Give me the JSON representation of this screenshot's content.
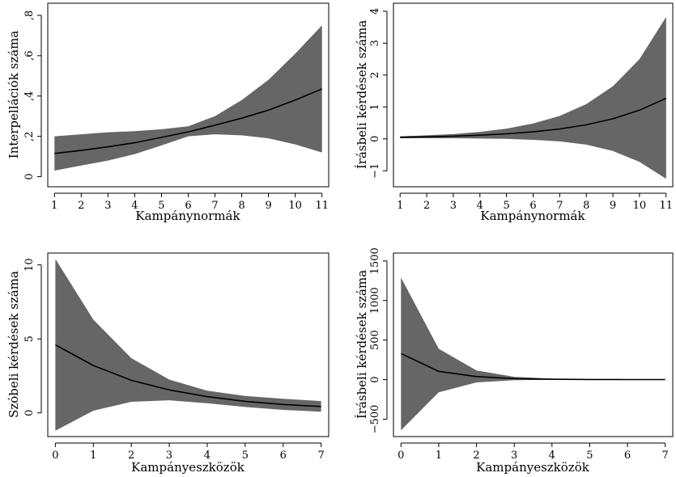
{
  "chart_data": [
    {
      "type": "area",
      "xlabel": "Kampánynormák",
      "ylabel": "Interpellációk száma",
      "x": [
        1,
        2,
        3,
        4,
        5,
        6,
        7,
        8,
        9,
        10,
        11
      ],
      "xticks": [
        "1",
        "2",
        "3",
        "4",
        "5",
        "6",
        "7",
        "8",
        "9",
        "10",
        "11"
      ],
      "xlim": [
        0.75,
        11.25
      ],
      "yticks": [
        0,
        0.2,
        0.4,
        0.6,
        0.8
      ],
      "ytick_labels": [
        "0",
        ",2",
        ",4",
        ",6",
        ",8"
      ],
      "ylim": [
        -0.05,
        0.86
      ],
      "series": [
        {
          "role": "upper",
          "values": [
            0.2,
            0.21,
            0.22,
            0.226,
            0.235,
            0.25,
            0.3,
            0.38,
            0.48,
            0.61,
            0.75
          ]
        },
        {
          "role": "lower",
          "values": [
            0.03,
            0.055,
            0.08,
            0.112,
            0.155,
            0.2,
            0.21,
            0.205,
            0.19,
            0.16,
            0.12
          ]
        },
        {
          "role": "estimate",
          "values": [
            0.115,
            0.13,
            0.148,
            0.168,
            0.195,
            0.222,
            0.255,
            0.29,
            0.33,
            0.38,
            0.435
          ]
        }
      ],
      "band_color": "#666666",
      "line_color": "#000000",
      "grid": false
    },
    {
      "type": "area",
      "xlabel": "Kampánynormák",
      "ylabel": "Írásbeli kérdések száma",
      "x": [
        1,
        2,
        3,
        4,
        5,
        6,
        7,
        8,
        9,
        10,
        11
      ],
      "xticks": [
        "1",
        "2",
        "3",
        "4",
        "5",
        "6",
        "7",
        "8",
        "9",
        "10",
        "11"
      ],
      "xlim": [
        0.75,
        11.25
      ],
      "yticks": [
        -1,
        0,
        1,
        2,
        3,
        4
      ],
      "ytick_labels": [
        "−1",
        "0",
        "1",
        "2",
        "3",
        "4"
      ],
      "ylim": [
        -1.5,
        4.25
      ],
      "series": [
        {
          "role": "upper",
          "values": [
            0.08,
            0.11,
            0.15,
            0.22,
            0.32,
            0.48,
            0.72,
            1.09,
            1.65,
            2.5,
            3.82
          ]
        },
        {
          "role": "lower",
          "values": [
            0.02,
            0.02,
            0.02,
            0.01,
            0.0,
            -0.03,
            -0.08,
            -0.18,
            -0.38,
            -0.72,
            -1.25
          ]
        },
        {
          "role": "estimate",
          "values": [
            0.05,
            0.065,
            0.085,
            0.115,
            0.16,
            0.22,
            0.31,
            0.44,
            0.63,
            0.9,
            1.27
          ]
        }
      ],
      "band_color": "#666666",
      "line_color": "#000000",
      "grid": false
    },
    {
      "type": "area",
      "xlabel": "Kampányeszközök",
      "ylabel": "Szóbeli kérdések száma",
      "x": [
        0,
        1,
        2,
        3,
        4,
        5,
        6,
        7
      ],
      "xticks": [
        "0",
        "1",
        "2",
        "3",
        "4",
        "5",
        "6",
        "7"
      ],
      "xlim": [
        -0.2,
        7.2
      ],
      "yticks": [
        0,
        5,
        10
      ],
      "ytick_labels": [
        "0",
        "5",
        "10"
      ],
      "ylim": [
        -1.6,
        10.8
      ],
      "series": [
        {
          "role": "upper",
          "values": [
            10.4,
            6.3,
            3.7,
            2.25,
            1.5,
            1.15,
            0.95,
            0.8
          ]
        },
        {
          "role": "lower",
          "values": [
            -1.2,
            0.15,
            0.75,
            0.85,
            0.65,
            0.4,
            0.2,
            0.08
          ]
        },
        {
          "role": "estimate",
          "values": [
            4.6,
            3.2,
            2.2,
            1.55,
            1.1,
            0.78,
            0.57,
            0.43
          ]
        }
      ],
      "band_color": "#666666",
      "line_color": "#000000",
      "grid": false
    },
    {
      "type": "area",
      "xlabel": "Kampányeszközök",
      "ylabel": "Írásbeli kérdések száma",
      "x": [
        0,
        1,
        2,
        3,
        4,
        5,
        6,
        7
      ],
      "xticks": [
        "0",
        "1",
        "2",
        "3",
        "4",
        "5",
        "6",
        "7"
      ],
      "xlim": [
        -0.2,
        7.2
      ],
      "yticks": [
        -500,
        0,
        500,
        1000,
        1500
      ],
      "ytick_labels": [
        "−500",
        "0",
        "500",
        "1000",
        "1500"
      ],
      "ylim": [
        -720,
        1600
      ],
      "series": [
        {
          "role": "upper",
          "values": [
            1290,
            390,
            115,
            35,
            12,
            5,
            3,
            2
          ]
        },
        {
          "role": "lower",
          "values": [
            -640,
            -160,
            -35,
            -8,
            -2,
            -1,
            -0.5,
            -0.3
          ]
        },
        {
          "role": "estimate",
          "values": [
            330,
            105,
            38,
            13,
            5,
            2,
            1,
            0.5
          ]
        }
      ],
      "band_color": "#666666",
      "line_color": "#000000",
      "grid": false
    }
  ]
}
